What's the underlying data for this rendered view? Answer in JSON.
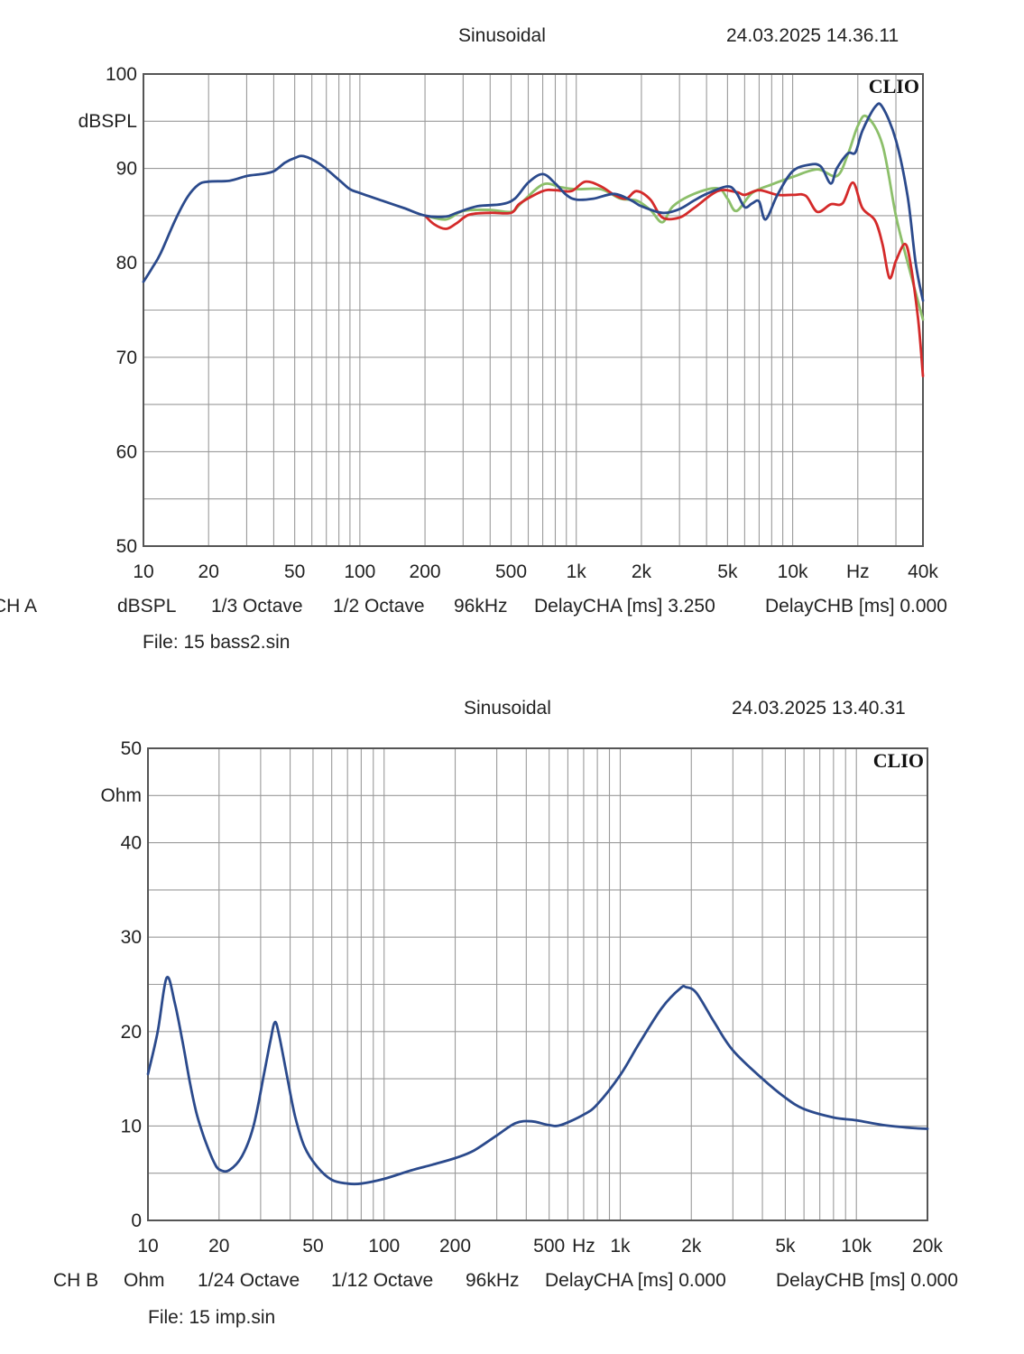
{
  "charts": [
    {
      "mode_label": "Sinusoidal",
      "timestamp": "24.03.2025 14.36.11",
      "brand": "CLIO",
      "y_unit_label": "dBSPL",
      "footer": [
        "CH A",
        "dBSPL",
        "1/3 Octave",
        "1/2 Octave",
        "96kHz",
        "DelayCHA [ms] 3.250",
        "DelayCHB [ms] 0.000"
      ],
      "file_label": "File: 15 bass2.sin"
    },
    {
      "mode_label": "Sinusoidal",
      "timestamp": "24.03.2025 13.40.31",
      "brand": "CLIO",
      "y_unit_label": "Ohm",
      "footer": [
        "CH B",
        "Ohm",
        "1/24 Octave",
        "1/12 Octave",
        "96kHz",
        "DelayCHA [ms] 0.000",
        "DelayCHB [ms] 0.000"
      ],
      "file_label": "File: 15 imp.sin"
    }
  ],
  "colors": {
    "grid": "#9a9a9a",
    "frame": "#555555",
    "blue": "#2b4a8c",
    "green": "#8cbf6a",
    "red": "#d42a2a"
  },
  "chart_data": [
    {
      "type": "line",
      "xscale": "log",
      "xlim": [
        10,
        40000
      ],
      "ylim": [
        50,
        100
      ],
      "ylabel": "dBSPL",
      "x_ticks": [
        {
          "value": 10,
          "label": "10"
        },
        {
          "value": 20,
          "label": "20"
        },
        {
          "value": 50,
          "label": "50"
        },
        {
          "value": 100,
          "label": "100"
        },
        {
          "value": 200,
          "label": "200"
        },
        {
          "value": 500,
          "label": "500"
        },
        {
          "value": 1000,
          "label": "1k"
        },
        {
          "value": 2000,
          "label": "2k"
        },
        {
          "value": 5000,
          "label": "5k"
        },
        {
          "value": 10000,
          "label": "10k"
        },
        {
          "value": 20000,
          "label": "Hz"
        },
        {
          "value": 40000,
          "label": "40k"
        }
      ],
      "y_ticks": [
        50,
        60,
        70,
        80,
        90,
        100
      ],
      "series": [
        {
          "color": "#8cbf6a",
          "points": [
            [
              200,
              85
            ],
            [
              250,
              84.6
            ],
            [
              300,
              85.5
            ],
            [
              400,
              85.6
            ],
            [
              500,
              85.4
            ],
            [
              550,
              86.2
            ],
            [
              700,
              88.3
            ],
            [
              850,
              88
            ],
            [
              1000,
              87.8
            ],
            [
              1300,
              87.8
            ],
            [
              1600,
              86.8
            ],
            [
              1900,
              86.6
            ],
            [
              2200,
              85.6
            ],
            [
              2500,
              84.3
            ],
            [
              2800,
              86
            ],
            [
              3500,
              87.3
            ],
            [
              4500,
              87.9
            ],
            [
              5000,
              86.8
            ],
            [
              5500,
              85.5
            ],
            [
              6500,
              87.4
            ],
            [
              8000,
              88.3
            ],
            [
              10000,
              89.1
            ],
            [
              13000,
              89.9
            ],
            [
              16000,
              89.2
            ],
            [
              18000,
              91.5
            ],
            [
              20000,
              94.5
            ],
            [
              22000,
              95.5
            ],
            [
              26000,
              92.5
            ],
            [
              30000,
              85
            ],
            [
              34000,
              80
            ],
            [
              40000,
              74
            ]
          ]
        },
        {
          "color": "#d42a2a",
          "points": [
            [
              200,
              85
            ],
            [
              220,
              84.1
            ],
            [
              250,
              83.6
            ],
            [
              280,
              84.2
            ],
            [
              320,
              85.1
            ],
            [
              400,
              85.3
            ],
            [
              500,
              85.3
            ],
            [
              550,
              86.3
            ],
            [
              700,
              87.6
            ],
            [
              800,
              87.7
            ],
            [
              950,
              87.6
            ],
            [
              1100,
              88.6
            ],
            [
              1300,
              88.1
            ],
            [
              1500,
              87.2
            ],
            [
              1700,
              86.8
            ],
            [
              1900,
              87.6
            ],
            [
              2200,
              86.7
            ],
            [
              2500,
              84.8
            ],
            [
              3000,
              84.8
            ],
            [
              3500,
              85.8
            ],
            [
              4500,
              87.6
            ],
            [
              5500,
              87.5
            ],
            [
              6000,
              87.2
            ],
            [
              7000,
              87.7
            ],
            [
              8500,
              87.2
            ],
            [
              10000,
              87.2
            ],
            [
              11500,
              87.1
            ],
            [
              13000,
              85.4
            ],
            [
              15000,
              86.2
            ],
            [
              17000,
              86.3
            ],
            [
              19000,
              88.5
            ],
            [
              21000,
              85.8
            ],
            [
              24000,
              84.5
            ],
            [
              26000,
              82
            ],
            [
              28000,
              78.4
            ],
            [
              30000,
              80.2
            ],
            [
              33000,
              82
            ],
            [
              35000,
              80
            ],
            [
              38000,
              74
            ],
            [
              40000,
              68
            ]
          ]
        },
        {
          "color": "#2b4a8c",
          "points": [
            [
              10,
              78
            ],
            [
              11,
              79.5
            ],
            [
              12,
              81
            ],
            [
              14,
              84.5
            ],
            [
              16,
              87
            ],
            [
              18,
              88.3
            ],
            [
              20,
              88.6
            ],
            [
              25,
              88.7
            ],
            [
              30,
              89.2
            ],
            [
              35,
              89.4
            ],
            [
              40,
              89.7
            ],
            [
              45,
              90.6
            ],
            [
              50,
              91.1
            ],
            [
              55,
              91.3
            ],
            [
              65,
              90.5
            ],
            [
              80,
              88.8
            ],
            [
              90,
              87.8
            ],
            [
              100,
              87.4
            ],
            [
              130,
              86.5
            ],
            [
              160,
              85.8
            ],
            [
              200,
              85
            ],
            [
              250,
              84.9
            ],
            [
              280,
              85.3
            ],
            [
              350,
              86
            ],
            [
              450,
              86.2
            ],
            [
              520,
              86.8
            ],
            [
              600,
              88.5
            ],
            [
              700,
              89.4
            ],
            [
              800,
              88.4
            ],
            [
              900,
              87.2
            ],
            [
              1000,
              86.7
            ],
            [
              1200,
              86.8
            ],
            [
              1500,
              87.3
            ],
            [
              1800,
              86.6
            ],
            [
              2000,
              86
            ],
            [
              2500,
              85.3
            ],
            [
              3000,
              85.7
            ],
            [
              3500,
              86.6
            ],
            [
              4000,
              87.3
            ],
            [
              5000,
              88.1
            ],
            [
              5500,
              87.4
            ],
            [
              6000,
              85.9
            ],
            [
              6500,
              86.3
            ],
            [
              7000,
              86.5
            ],
            [
              7500,
              84.6
            ],
            [
              8500,
              87.2
            ],
            [
              10000,
              89.7
            ],
            [
              12000,
              90.4
            ],
            [
              13500,
              90.2
            ],
            [
              15000,
              88.4
            ],
            [
              16000,
              90
            ],
            [
              18000,
              91.6
            ],
            [
              19500,
              91.7
            ],
            [
              21000,
              94
            ],
            [
              24000,
              96.5
            ],
            [
              26000,
              96.5
            ],
            [
              30000,
              93
            ],
            [
              34000,
              87
            ],
            [
              37000,
              80
            ],
            [
              40000,
              76
            ]
          ]
        }
      ]
    },
    {
      "type": "line",
      "xscale": "log",
      "xlim": [
        10,
        20000
      ],
      "ylim": [
        0,
        50
      ],
      "ylabel": "Ohm",
      "x_ticks": [
        {
          "value": 10,
          "label": "10"
        },
        {
          "value": 20,
          "label": "20"
        },
        {
          "value": 50,
          "label": "50"
        },
        {
          "value": 100,
          "label": "100"
        },
        {
          "value": 200,
          "label": "200"
        },
        {
          "value": 500,
          "label": "500"
        },
        {
          "value": 700,
          "label": "Hz"
        },
        {
          "value": 1000,
          "label": "1k"
        },
        {
          "value": 2000,
          "label": "2k"
        },
        {
          "value": 5000,
          "label": "5k"
        },
        {
          "value": 10000,
          "label": "10k"
        },
        {
          "value": 20000,
          "label": "20k"
        }
      ],
      "y_ticks": [
        0,
        10,
        20,
        30,
        40,
        50
      ],
      "series": [
        {
          "color": "#2b4a8c",
          "points": [
            [
              10,
              15.5
            ],
            [
              11,
              20
            ],
            [
              12,
              25.7
            ],
            [
              13,
              23
            ],
            [
              14,
              19
            ],
            [
              15,
              14.8
            ],
            [
              16,
              11.5
            ],
            [
              17,
              9.3
            ],
            [
              18,
              7.6
            ],
            [
              19,
              6.2
            ],
            [
              20,
              5.4
            ],
            [
              22,
              5.3
            ],
            [
              25,
              6.8
            ],
            [
              28,
              10
            ],
            [
              31,
              15.5
            ],
            [
              33,
              19
            ],
            [
              34.5,
              21
            ],
            [
              36,
              19.5
            ],
            [
              39,
              15
            ],
            [
              42,
              11
            ],
            [
              46,
              7.8
            ],
            [
              52,
              5.7
            ],
            [
              60,
              4.3
            ],
            [
              70,
              3.9
            ],
            [
              80,
              3.9
            ],
            [
              100,
              4.4
            ],
            [
              130,
              5.3
            ],
            [
              160,
              5.9
            ],
            [
              200,
              6.6
            ],
            [
              240,
              7.4
            ],
            [
              300,
              9
            ],
            [
              360,
              10.3
            ],
            [
              420,
              10.5
            ],
            [
              500,
              10.1
            ],
            [
              560,
              10.1
            ],
            [
              700,
              11.2
            ],
            [
              800,
              12.3
            ],
            [
              1000,
              15.4
            ],
            [
              1200,
              18.7
            ],
            [
              1500,
              22.5
            ],
            [
              1800,
              24.6
            ],
            [
              1900,
              24.7
            ],
            [
              2100,
              24.1
            ],
            [
              2500,
              21
            ],
            [
              3000,
              18
            ],
            [
              4000,
              15
            ],
            [
              5000,
              13
            ],
            [
              6000,
              11.8
            ],
            [
              8000,
              10.9
            ],
            [
              10000,
              10.6
            ],
            [
              13000,
              10.1
            ],
            [
              17000,
              9.8
            ],
            [
              20000,
              9.7
            ]
          ]
        }
      ]
    }
  ]
}
